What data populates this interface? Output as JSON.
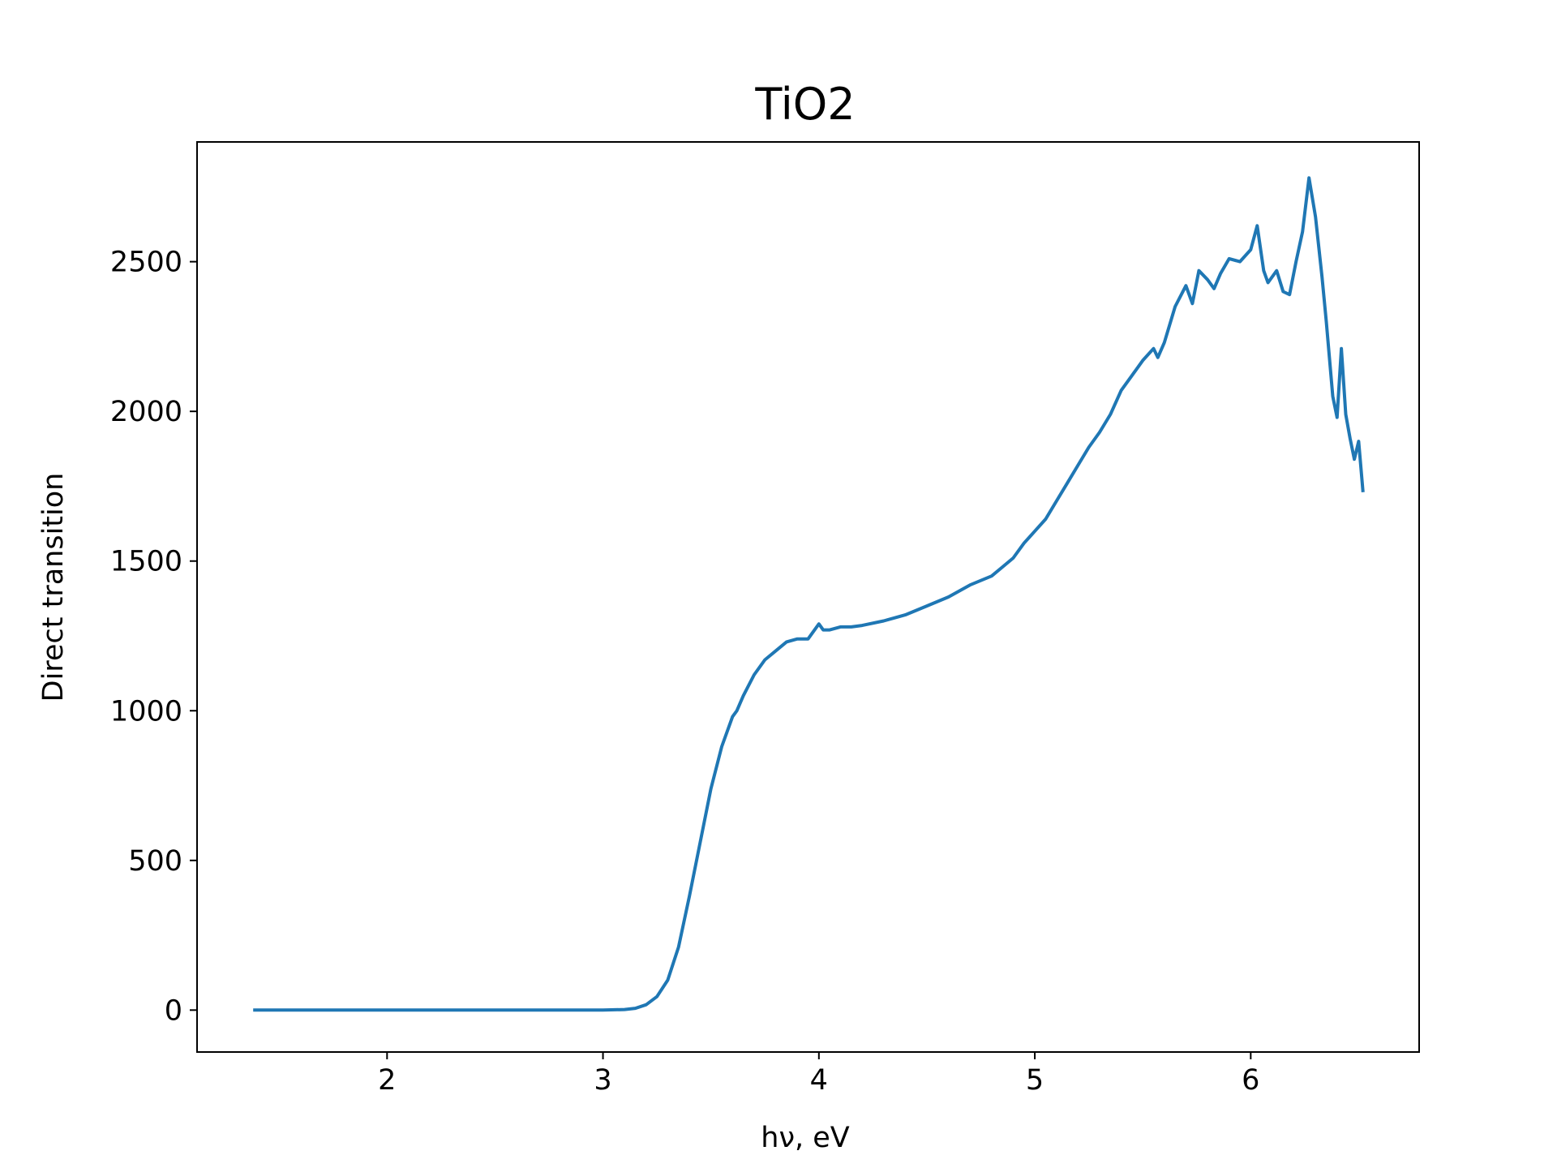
{
  "chart_data": {
    "type": "line",
    "title": "TiO2",
    "xlabel": "hν, eV",
    "ylabel": "Direct transition",
    "xlim": [
      1.12,
      6.78
    ],
    "ylim": [
      -140,
      2900
    ],
    "xticks": [
      2,
      3,
      4,
      5,
      6
    ],
    "yticks": [
      0,
      500,
      1000,
      1500,
      2000,
      2500
    ],
    "grid": false,
    "legend": "none",
    "line_color": "#1f77b4",
    "series": [
      {
        "x": [
          1.38,
          1.6,
          1.8,
          2.0,
          2.2,
          2.4,
          2.6,
          2.8,
          3.0,
          3.1,
          3.15,
          3.2,
          3.25,
          3.3,
          3.35,
          3.4,
          3.45,
          3.5,
          3.55,
          3.6,
          3.62,
          3.65,
          3.7,
          3.75,
          3.8,
          3.85,
          3.9,
          3.95,
          4.0,
          4.02,
          4.05,
          4.1,
          4.15,
          4.2,
          4.3,
          4.4,
          4.5,
          4.6,
          4.7,
          4.8,
          4.85,
          4.9,
          4.95,
          5.0,
          5.05,
          5.1,
          5.15,
          5.2,
          5.25,
          5.3,
          5.35,
          5.4,
          5.45,
          5.5,
          5.55,
          5.57,
          5.6,
          5.65,
          5.7,
          5.73,
          5.76,
          5.8,
          5.83,
          5.86,
          5.9,
          5.95,
          6.0,
          6.03,
          6.06,
          6.08,
          6.12,
          6.15,
          6.18,
          6.21,
          6.24,
          6.27,
          6.3,
          6.33,
          6.35,
          6.38,
          6.4,
          6.42,
          6.44,
          6.46,
          6.48,
          6.5,
          6.52
        ],
        "y": [
          0,
          0,
          0,
          0,
          0,
          0,
          0,
          0,
          0,
          2,
          6,
          18,
          45,
          100,
          210,
          380,
          560,
          740,
          880,
          980,
          1000,
          1050,
          1120,
          1170,
          1200,
          1230,
          1240,
          1240,
          1290,
          1270,
          1270,
          1280,
          1280,
          1285,
          1300,
          1320,
          1350,
          1380,
          1420,
          1450,
          1480,
          1510,
          1560,
          1600,
          1640,
          1700,
          1760,
          1820,
          1880,
          1930,
          1990,
          2070,
          2120,
          2170,
          2210,
          2180,
          2230,
          2350,
          2420,
          2360,
          2470,
          2440,
          2410,
          2460,
          2510,
          2500,
          2540,
          2620,
          2470,
          2430,
          2470,
          2400,
          2390,
          2500,
          2600,
          2780,
          2650,
          2450,
          2300,
          2050,
          1980,
          2210,
          1990,
          1910,
          1840,
          1900,
          1730
        ]
      }
    ]
  }
}
